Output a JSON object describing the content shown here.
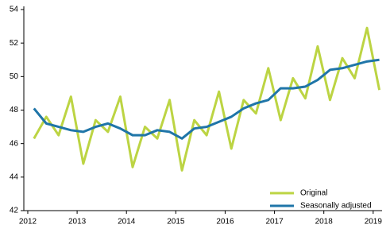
{
  "chart_data": {
    "type": "line",
    "x": [
      2012.125,
      2012.375,
      2012.625,
      2012.875,
      2013.125,
      2013.375,
      2013.625,
      2013.875,
      2014.125,
      2014.375,
      2014.625,
      2014.875,
      2015.125,
      2015.375,
      2015.625,
      2015.875,
      2016.125,
      2016.375,
      2016.625,
      2016.875,
      2017.125,
      2017.375,
      2017.625,
      2017.875,
      2018.125,
      2018.375,
      2018.625,
      2018.875,
      2019.125
    ],
    "series": [
      {
        "name": "Original",
        "color": "#bcd443",
        "values": [
          46.3,
          47.6,
          46.5,
          48.8,
          44.8,
          47.4,
          46.7,
          48.8,
          44.6,
          47.0,
          46.3,
          48.6,
          44.4,
          47.4,
          46.5,
          49.1,
          45.7,
          48.6,
          47.8,
          50.5,
          47.4,
          49.9,
          48.7,
          51.8,
          48.6,
          51.1,
          49.9,
          52.9,
          49.2
        ]
      },
      {
        "name": "Seasonally adjusted",
        "color": "#1f75a8",
        "values": [
          48.1,
          47.2,
          47.0,
          46.8,
          46.7,
          47.0,
          47.2,
          46.9,
          46.5,
          46.5,
          46.8,
          46.7,
          46.3,
          46.9,
          47.0,
          47.3,
          47.6,
          48.1,
          48.4,
          48.6,
          49.3,
          49.3,
          49.4,
          49.8,
          50.4,
          50.5,
          50.7,
          50.9,
          51.0
        ]
      }
    ],
    "xlim": [
      2011.92,
      2019.18
    ],
    "xticks": [
      2012,
      2013,
      2014,
      2015,
      2016,
      2017,
      2018,
      2019
    ],
    "ylim": [
      42,
      54
    ],
    "yticks": [
      42,
      44,
      46,
      48,
      50,
      52,
      54
    ],
    "legend": "lower right"
  }
}
